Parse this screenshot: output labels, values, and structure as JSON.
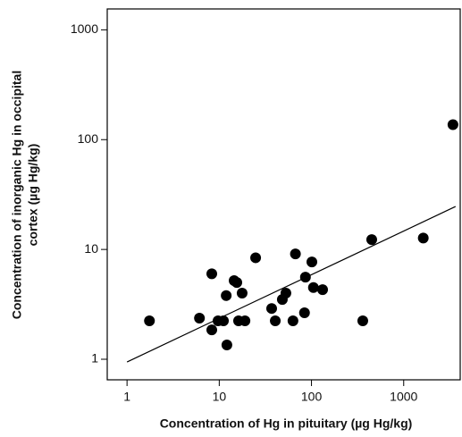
{
  "chart_data": {
    "type": "scatter",
    "x_label": "Concentration of Hg in pituitary (µg Hg/kg)",
    "y_label": [
      "Concentration of inorganic Hg in occipital",
      "cortex (µg Hg/kg)"
    ],
    "x_log": true,
    "y_log": true,
    "color": "#000000",
    "xlim": [
      0.61,
      4100
    ],
    "ylim": [
      0.65,
      1550
    ],
    "xticks": [
      1,
      10,
      100,
      1000
    ],
    "yticks": [
      1,
      10,
      100,
      1000
    ],
    "x": [
      1.75,
      6.1,
      8.3,
      9.7,
      11.1,
      8.3,
      12.1,
      11.9,
      14.5,
      15.5,
      16.2,
      17.7,
      19.0,
      24.8,
      37,
      40.5,
      48.3,
      52.8,
      63,
      67,
      84,
      86,
      101,
      105,
      132,
      360,
      450,
      1630,
      3420
    ],
    "values": [
      2.24,
      2.37,
      6.0,
      2.24,
      2.24,
      1.85,
      1.35,
      3.8,
      5.2,
      5.0,
      2.24,
      4.0,
      2.24,
      8.4,
      2.9,
      2.24,
      3.5,
      4.0,
      2.24,
      9.1,
      2.65,
      5.6,
      7.7,
      4.5,
      4.3,
      2.24,
      12.3,
      12.7,
      137
    ],
    "fit_line": {
      "x": [
        1,
        3650
      ],
      "values": [
        0.945,
        24.6
      ]
    }
  }
}
